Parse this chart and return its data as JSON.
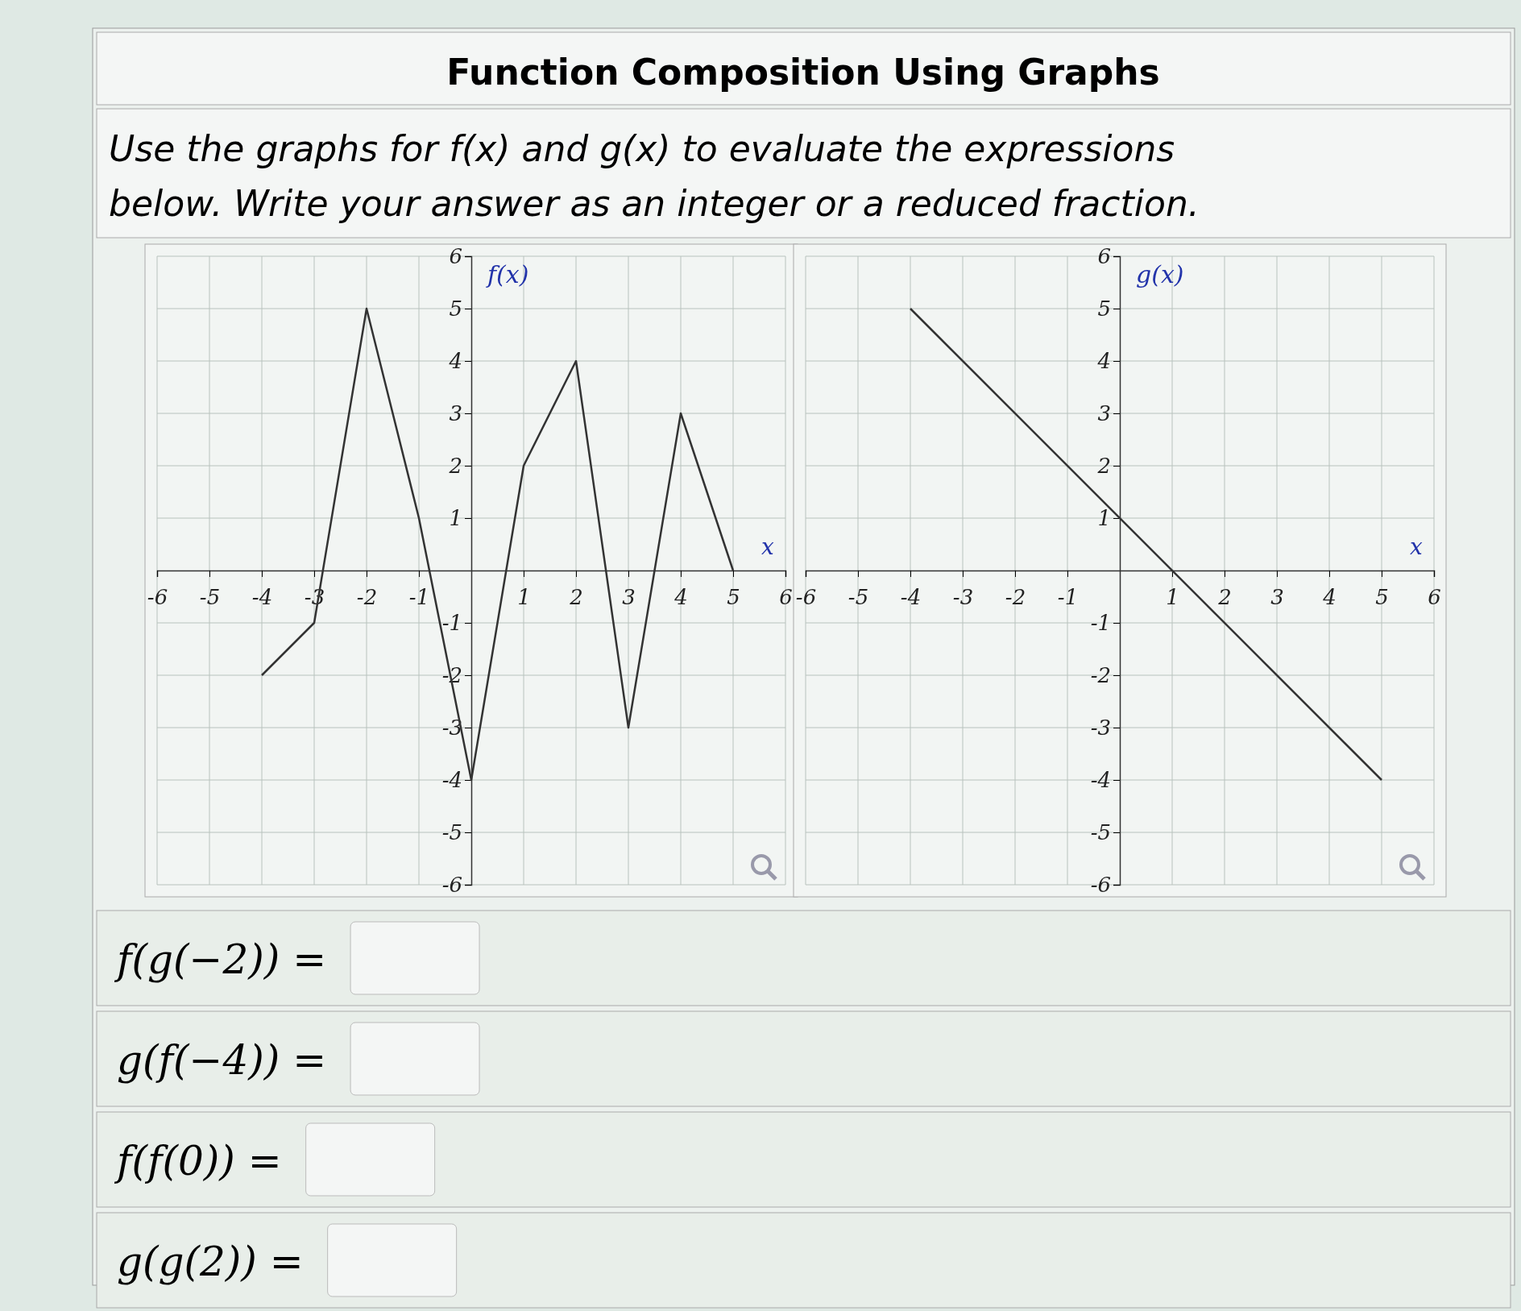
{
  "chart_data": [
    {
      "type": "other",
      "title": "Function Composition Using Graphs",
      "subtitle": "Use the graphs for f(x) and g(x) to evaluate the expressions below. Write your answer as an integer or a reduced fraction."
    },
    {
      "type": "line",
      "xlabel": "x",
      "ylabel": "f(x)",
      "x": [
        -4,
        -3,
        -2,
        -1,
        0,
        1,
        2,
        3,
        4,
        5
      ],
      "series": [
        {
          "color": "#333333",
          "values": [
            -2,
            -1,
            5,
            1,
            -4,
            2,
            4,
            -3,
            3,
            0
          ]
        }
      ],
      "xlim": [
        -6,
        6
      ],
      "ylim": [
        -6,
        6
      ],
      "xticks": [
        -6,
        -5,
        -4,
        -3,
        -2,
        -1,
        1,
        2,
        3,
        4,
        5,
        6
      ],
      "yticks": [
        -6,
        -5,
        -4,
        -3,
        -2,
        -1,
        1,
        2,
        3,
        4,
        5,
        6
      ],
      "grid": true
    },
    {
      "type": "line",
      "xlabel": "x",
      "ylabel": "g(x)",
      "x": [
        -4,
        5
      ],
      "series": [
        {
          "color": "#333333",
          "values": [
            5,
            -4
          ]
        }
      ],
      "xlim": [
        -6,
        6
      ],
      "ylim": [
        -6,
        6
      ],
      "xticks": [
        -6,
        -5,
        -4,
        -3,
        -2,
        -1,
        1,
        2,
        3,
        4,
        5,
        6
      ],
      "yticks": [
        -6,
        -5,
        -4,
        -3,
        -2,
        -1,
        1,
        2,
        3,
        4,
        5,
        6
      ],
      "grid": true
    },
    {
      "type": "other",
      "annotations": [
        "f(g(−2)) =",
        "g(f(−4)) =",
        "f(f(0)) =",
        "g(g(2)) ="
      ]
    }
  ]
}
